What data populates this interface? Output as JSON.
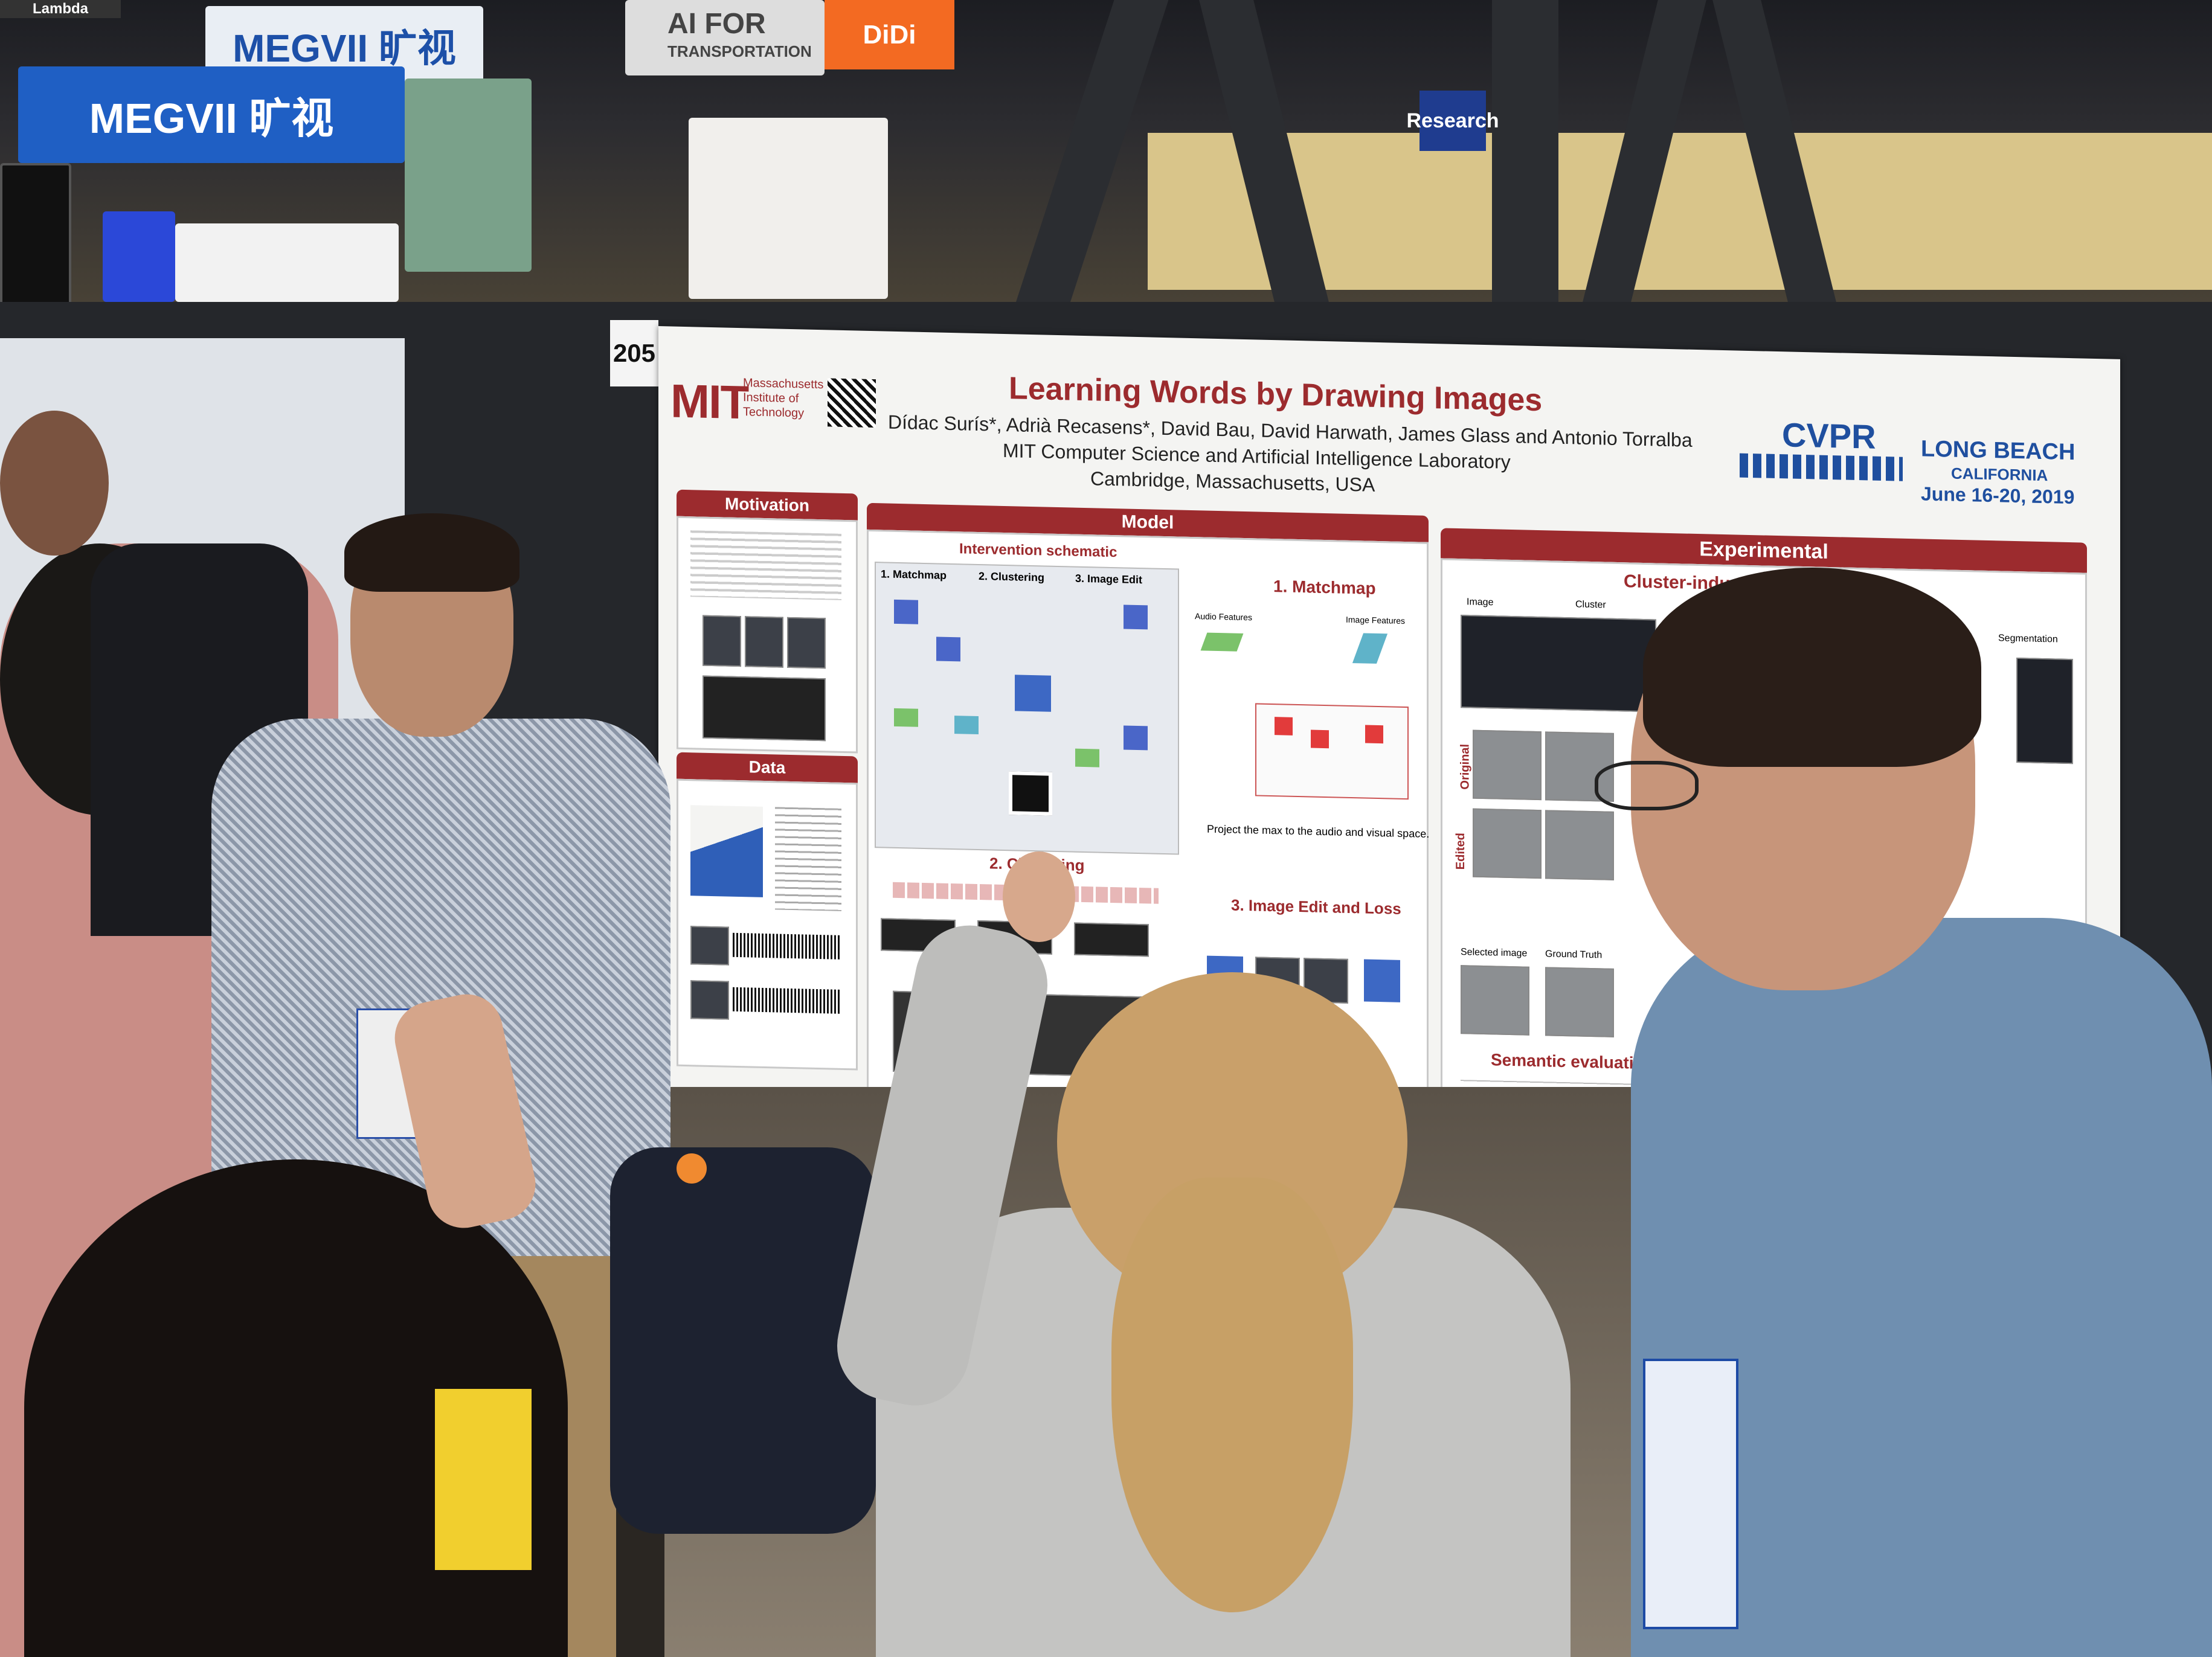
{
  "background_signs": {
    "top_left": "Lambda",
    "megvii_1": "MEGVII 旷视",
    "megvii_2": "MEGVII 旷视",
    "ai_transport_line1": "AI FOR",
    "ai_transport_line2": "TRANSPORTATION",
    "didi": "DiDi",
    "research": "Research"
  },
  "board_number": "205",
  "poster": {
    "title": "Learning Words by Drawing Images",
    "authors": "Dídac Surís*, Adrià Recasens*, David Bau, David Harwath, James Glass and Antonio Torralba",
    "lab": "MIT Computer Science and Artificial Intelligence Laboratory",
    "location": "Cambridge, Massachusetts, USA",
    "mit_logo": "MIT",
    "mit_name_1": "Massachusetts",
    "mit_name_2": "Institute of",
    "mit_name_3": "Technology",
    "cvpr_logo": "CVPR",
    "venue_1": "LONG BEACH",
    "venue_2": "CALIFORNIA",
    "venue_dates": "June 16-20, 2019",
    "sections": {
      "motivation": "Motivation",
      "data": "Data",
      "model": "Model",
      "intervention": "Intervention schematic",
      "matchmap": "1. Matchmap",
      "clustering": "2. Clustering",
      "image_edit": "3. Image Edit",
      "matchmap_big": "1. Matchmap",
      "clustering_big": "2. Clustering",
      "image_edit_loss": "3. Image Edit and Loss",
      "project_caption": "Project the max to the audio and visual space.",
      "experimental": "Experimental",
      "cluster_induced": "Cluster-induced",
      "semantic_eval": "Semantic evaluation",
      "original": "Original",
      "edited": "Edited",
      "segmentation": "Segmentation",
      "image_col": "Image",
      "cluster_col": "Cluster",
      "selected_image": "Selected image",
      "ground_truth": "Ground Truth",
      "audio_features": "Audio Features",
      "image_features": "Image Features"
    }
  },
  "colors": {
    "accent_red": "#9c2b2e",
    "poster_bg": "#f4f4f2",
    "board": "#25272b"
  }
}
